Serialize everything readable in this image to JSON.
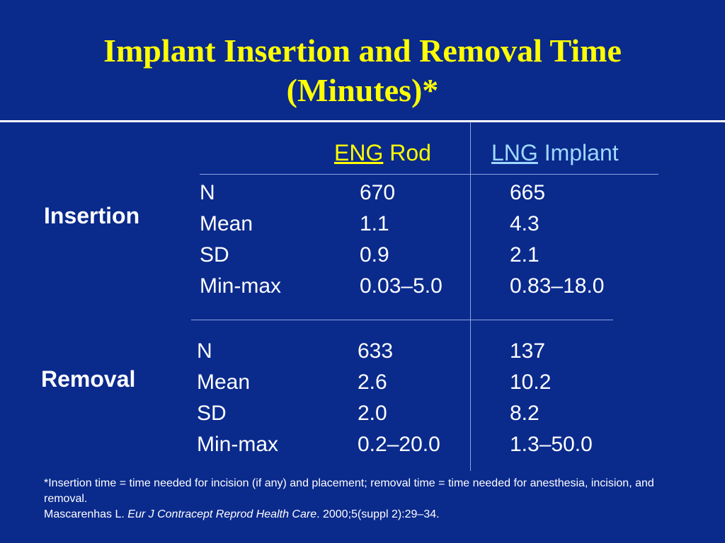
{
  "title": {
    "line1": "Implant Insertion and Removal Time",
    "line2": "(Minutes)*"
  },
  "columns": {
    "eng": {
      "abbr": "ENG",
      "word": "Rod"
    },
    "lng": {
      "abbr": "LNG",
      "word": "Implant"
    }
  },
  "insertion": {
    "label": "Insertion",
    "rows": [
      {
        "stat": "N",
        "eng": "670",
        "lng": "665"
      },
      {
        "stat": "Mean",
        "eng": "1.1",
        "lng": "4.3"
      },
      {
        "stat": "SD",
        "eng": "0.9",
        "lng": "2.1"
      },
      {
        "stat": "Min-max",
        "eng": "0.03–5.0",
        "lng": "0.83–18.0"
      }
    ]
  },
  "removal": {
    "label": "Removal",
    "rows": [
      {
        "stat": "N",
        "eng": "633",
        "lng": "137"
      },
      {
        "stat": "Mean",
        "eng": "2.6",
        "lng": "10.2"
      },
      {
        "stat": "SD",
        "eng": "2.0",
        "lng": "8.2"
      },
      {
        "stat": "Min-max",
        "eng": "0.2–20.0",
        "lng": "1.3–50.0"
      }
    ]
  },
  "footnote": {
    "definition": "*Insertion time = time needed for incision (if any) and placement; removal time = time needed for anesthesia, incision, and removal.",
    "ref_author": "Mascarenhas L.",
    "ref_journal": "Eur J Contracept Reprod Health Care",
    "ref_details": ". 2000;5(suppl 2):29–34."
  },
  "colors": {
    "background": "#0a2a8c",
    "title": "#ffff00",
    "eng_header": "#ffff00",
    "lng_header": "#9fd8ff",
    "text": "#ffffff"
  }
}
